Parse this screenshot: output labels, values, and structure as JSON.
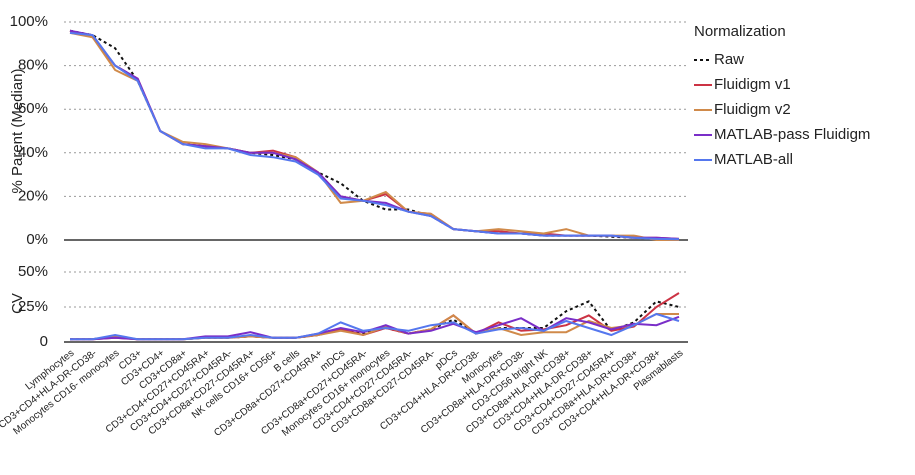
{
  "chart_data": [
    {
      "type": "line",
      "y_label": "% Parent (Median)",
      "legend_title": "Normalization",
      "ylim": [
        0,
        100
      ],
      "yticks": [
        {
          "value": 0,
          "label": "0%"
        },
        {
          "value": 20,
          "label": "20%"
        },
        {
          "value": 40,
          "label": "40%"
        },
        {
          "value": 60,
          "label": "60%"
        },
        {
          "value": 80,
          "label": "80%"
        },
        {
          "value": 100,
          "label": "100%"
        }
      ],
      "series": [
        {
          "name": "Raw",
          "color": "#111111",
          "line_style": "dashed",
          "values": [
            96,
            94,
            88,
            73,
            50,
            44,
            43,
            42,
            40,
            39,
            37,
            31,
            26,
            18,
            14,
            14,
            11,
            5,
            4,
            3,
            3,
            2,
            2,
            2,
            1.5,
            1,
            0.5,
            0.3
          ]
        },
        {
          "name": "Fluidigm v1",
          "color": "#cc3344",
          "line_style": "solid",
          "values": [
            96,
            93,
            80,
            74,
            50,
            44,
            43,
            42,
            40,
            41,
            38,
            31,
            20,
            18,
            21,
            13,
            12,
            5,
            4,
            4,
            3,
            3,
            2,
            2,
            2,
            1,
            1,
            0.5
          ]
        },
        {
          "name": "Fluidigm v2",
          "color": "#d08a4a",
          "line_style": "solid",
          "values": [
            95,
            93,
            78,
            73,
            50,
            45,
            44,
            42,
            40,
            40,
            38,
            31,
            17,
            18,
            22,
            13,
            12,
            5,
            4,
            5,
            4,
            3,
            5,
            2,
            2,
            2,
            0,
            0
          ]
        },
        {
          "name": "MATLAB-pass Fluidigm",
          "color": "#7a2ec8",
          "line_style": "solid",
          "values": [
            96,
            94,
            80,
            74,
            50,
            44,
            43,
            42,
            40,
            40,
            37,
            31,
            20,
            18,
            17,
            13,
            11,
            5,
            4,
            3,
            3,
            2,
            2,
            2,
            2,
            1,
            1,
            0.5
          ]
        },
        {
          "name": "MATLAB-all",
          "color": "#5577ee",
          "line_style": "solid",
          "values": [
            95,
            94,
            80,
            73,
            50,
            44,
            42,
            42,
            39,
            38,
            36,
            30,
            19,
            18,
            16,
            13,
            11,
            5,
            4,
            3,
            3,
            2,
            2,
            2,
            2,
            1,
            0.5,
            0.3
          ]
        }
      ]
    },
    {
      "type": "line",
      "y_label": "CV",
      "ylim": [
        0,
        55
      ],
      "yticks": [
        0,
        {
          "value": 25,
          "label": "25%"
        },
        {
          "value": 50,
          "label": "50%"
        }
      ],
      "categories": [
        "Lymphocytes",
        "CD3+CD4+HLA-DR-CD38-",
        "Monocytes CD16- monocytes",
        "CD3+",
        "CD3+CD4+",
        "CD3+CD8a+",
        "CD3+CD4+CD27+CD45RA+",
        "CD3+CD4+CD27+CD45RA-",
        "CD3+CD8a+CD27-CD45RA+",
        "NK cells CD16+ CD56+",
        "B cells",
        "CD3+CD8a+CD27+CD45RA+",
        "mDCs",
        "CD3+CD8a+CD27+CD45RA-",
        "Monocytes CD16+ monocytes",
        "CD3+CD4+CD27-CD45RA-",
        "CD3+CD8a+CD27-CD45RA-",
        "pDCs",
        "CD3+CD4+HLA-DR+CD38-",
        "Monocytes",
        "CD3+CD8a+HLA-DR+CD38-",
        "CD3-CD56 bright NK",
        "CD3+CD8a+HLA-DR-CD38+",
        "CD3+CD4+HLA-DR-CD38+",
        "CD3+CD4+CD27-CD45RA+",
        "CD3+CD8a+HLA-DR+CD38+",
        "CD3+CD4+HLA-DR+CD38+",
        "Plasmablasts"
      ],
      "series": [
        {
          "color": "#111111",
          "line_style": "dashed",
          "values": [
            2,
            2,
            4,
            2,
            2,
            2,
            3,
            3,
            4,
            3,
            3,
            5,
            9,
            6,
            10,
            6,
            9,
            16,
            6,
            10,
            10,
            10,
            22,
            29,
            8,
            14,
            29,
            25
          ]
        },
        {
          "color": "#cc3344",
          "line_style": "solid",
          "values": [
            2,
            2,
            3,
            2,
            2,
            2,
            3,
            3,
            4,
            3,
            3,
            5,
            9,
            5,
            10,
            6,
            9,
            19,
            6,
            14,
            8,
            9,
            12,
            19,
            8,
            11,
            25,
            35
          ]
        },
        {
          "color": "#d08a4a",
          "line_style": "solid",
          "values": [
            2,
            2,
            4,
            2,
            2,
            2,
            3,
            3,
            4,
            3,
            3,
            5,
            8,
            5,
            11,
            6,
            9,
            19,
            6,
            10,
            5,
            7,
            7,
            15,
            10,
            12,
            20,
            20
          ]
        },
        {
          "color": "#7a2ec8",
          "line_style": "solid",
          "values": [
            2,
            2,
            3,
            2,
            2,
            2,
            4,
            4,
            7,
            3,
            3,
            6,
            10,
            7,
            12,
            6,
            8,
            13,
            7,
            12,
            17,
            8,
            17,
            14,
            9,
            13,
            12,
            18
          ]
        },
        {
          "color": "#5577ee",
          "line_style": "solid",
          "values": [
            2,
            2,
            5,
            2,
            2,
            2,
            3,
            3,
            5,
            3,
            3,
            6,
            14,
            8,
            10,
            8,
            12,
            14,
            6,
            9,
            10,
            8,
            15,
            10,
            5,
            12,
            20,
            15
          ]
        }
      ]
    }
  ]
}
